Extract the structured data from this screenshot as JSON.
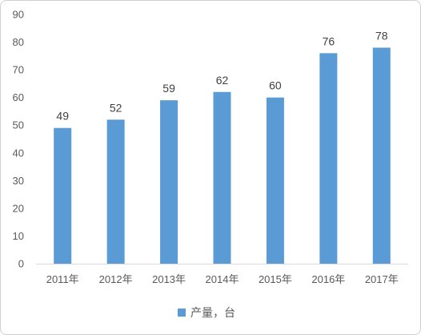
{
  "chart_data": {
    "type": "bar",
    "categories": [
      "2011年",
      "2012年",
      "2013年",
      "2014年",
      "2015年",
      "2016年",
      "2017年"
    ],
    "series": [
      {
        "name": "产量，台",
        "values": [
          49,
          52,
          59,
          62,
          60,
          76,
          78
        ]
      }
    ],
    "ylim": [
      0,
      90
    ],
    "yticks": [
      0,
      10,
      20,
      30,
      40,
      50,
      60,
      70,
      80,
      90
    ],
    "grid": false,
    "legend": "bottom",
    "colors": {
      "bar": "#5b9bd5",
      "axis": "#d9d9d9"
    }
  }
}
